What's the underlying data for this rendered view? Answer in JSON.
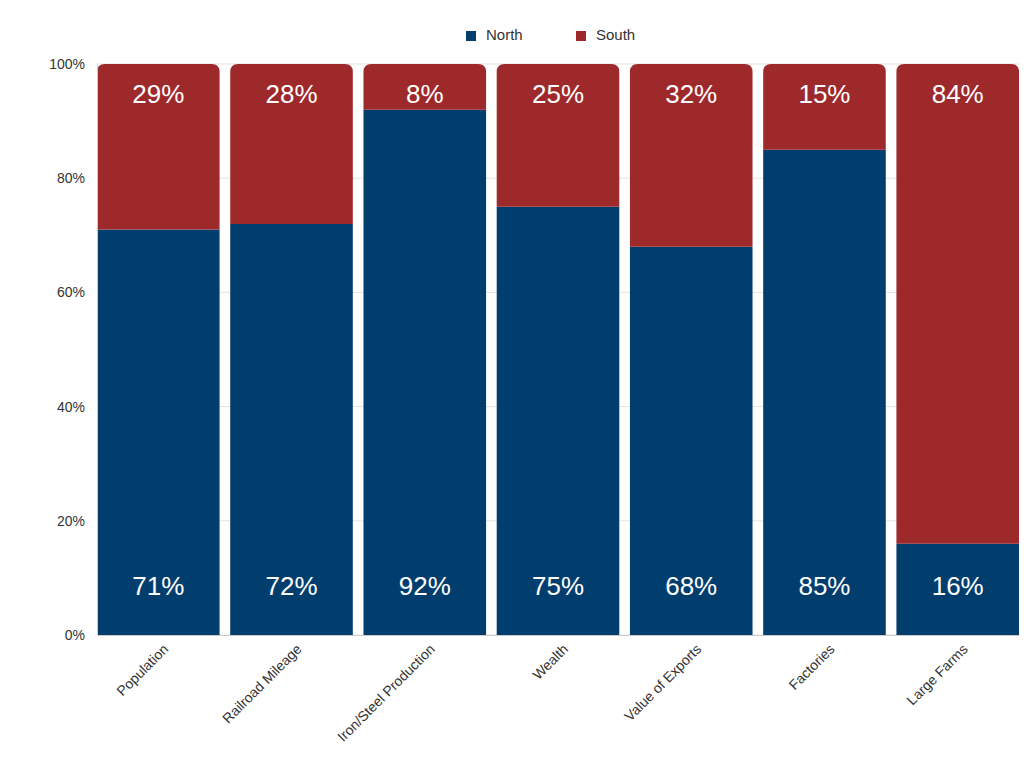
{
  "chart_data": {
    "type": "bar",
    "stacked": true,
    "data_labels": true,
    "grid": true,
    "legend": "top",
    "categories": [
      "Population",
      "Railroad Mileage",
      "Iron/Steel Production",
      "Wealth",
      "Value of Exports",
      "Factories",
      "Large Farms"
    ],
    "series": [
      {
        "name": "North",
        "color": "#023e6d",
        "values": [
          71,
          72,
          92,
          75,
          68,
          85,
          16
        ],
        "value_labels": [
          "71%",
          "72%",
          "92%",
          "75%",
          "68%",
          "85%",
          "16%"
        ]
      },
      {
        "name": "South",
        "color": "#9e292b",
        "values": [
          29,
          28,
          8,
          25,
          32,
          15,
          84
        ],
        "value_labels": [
          "29%",
          "28%",
          "8%",
          "25%",
          "32%",
          "15%",
          "84%"
        ]
      }
    ],
    "ylim": [
      0,
      100
    ],
    "yticks": [
      {
        "value": 0,
        "label": "0%"
      },
      {
        "value": 20,
        "label": "20%"
      },
      {
        "value": 40,
        "label": "40%"
      },
      {
        "value": 60,
        "label": "60%"
      },
      {
        "value": 80,
        "label": "80%"
      },
      {
        "value": 100,
        "label": "100%"
      }
    ]
  }
}
